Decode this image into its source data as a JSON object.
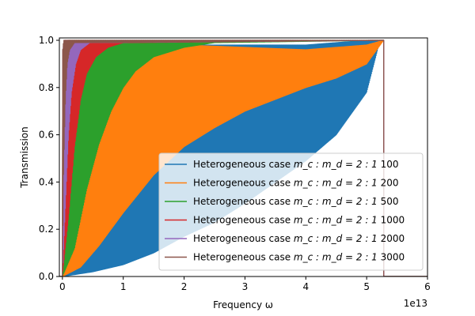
{
  "chart_data": {
    "type": "line",
    "title": "",
    "xlabel": "Frequency ω",
    "ylabel": "Transmission",
    "x_offset_label": "1e13",
    "xlim": [
      -0.05,
      6
    ],
    "ylim": [
      0,
      1.01
    ],
    "x_unit_scale": 10000000000000.0,
    "x_ticks": [
      0,
      1,
      2,
      3,
      4,
      5,
      6
    ],
    "x_tick_labels": [
      "0",
      "1",
      "2",
      "3",
      "4",
      "5",
      "6"
    ],
    "y_ticks": [
      0,
      0.2,
      0.4,
      0.6,
      0.8,
      1.0
    ],
    "y_tick_labels": [
      "0.0",
      "0.2",
      "0.4",
      "0.6",
      "0.8",
      "1.0"
    ],
    "grid": false,
    "legend_position": "lower-right",
    "band_edge": 5.28,
    "series": [
      {
        "name": "Heterogeneous case m_c : m_d = 2 : 1 100",
        "legend_label": "Heterogeneous case",
        "legend_math": "m_c : m_d = 2 : 1",
        "legend_suffix": "100",
        "color": "#1f77b4",
        "upper_envelope": [
          [
            0,
            0.95
          ],
          [
            0.05,
            1.0
          ],
          [
            0.5,
            0.98
          ],
          [
            1,
            0.97
          ],
          [
            2,
            0.98
          ],
          [
            3,
            0.98
          ],
          [
            4,
            0.98
          ],
          [
            5,
            1.0
          ],
          [
            5.28,
            1.0
          ]
        ],
        "lower_envelope": [
          [
            0,
            0.0
          ],
          [
            0.5,
            0.02
          ],
          [
            1,
            0.05
          ],
          [
            1.5,
            0.1
          ],
          [
            2,
            0.17
          ],
          [
            2.5,
            0.23
          ],
          [
            3,
            0.31
          ],
          [
            3.5,
            0.4
          ],
          [
            4,
            0.49
          ],
          [
            4.5,
            0.6
          ],
          [
            5,
            0.78
          ],
          [
            5.2,
            0.98
          ],
          [
            5.28,
            1.0
          ]
        ]
      },
      {
        "name": "Heterogeneous case m_c : m_d = 2 : 1 200",
        "legend_label": "Heterogeneous case",
        "legend_math": "m_c : m_d = 2 : 1",
        "legend_suffix": "200",
        "color": "#ff7f0e",
        "upper_envelope": [
          [
            0,
            0.95
          ],
          [
            0.1,
            1.0
          ],
          [
            1,
            0.99
          ],
          [
            2,
            0.98
          ],
          [
            3,
            0.97
          ],
          [
            4,
            0.96
          ],
          [
            5,
            0.98
          ],
          [
            5.28,
            1.0
          ]
        ],
        "lower_envelope": [
          [
            0,
            0.0
          ],
          [
            0.3,
            0.04
          ],
          [
            0.6,
            0.13
          ],
          [
            1,
            0.27
          ],
          [
            1.5,
            0.43
          ],
          [
            2,
            0.55
          ],
          [
            2.5,
            0.63
          ],
          [
            3,
            0.7
          ],
          [
            3.5,
            0.75
          ],
          [
            4,
            0.8
          ],
          [
            4.5,
            0.84
          ],
          [
            5,
            0.9
          ],
          [
            5.28,
            1.0
          ]
        ]
      },
      {
        "name": "Heterogeneous case m_c : m_d = 2 : 1 500",
        "legend_label": "Heterogeneous case",
        "legend_math": "m_c : m_d = 2 : 1",
        "legend_suffix": "500",
        "color": "#2ca02c",
        "upper_envelope": [
          [
            0,
            0.95
          ],
          [
            0.1,
            1.0
          ],
          [
            5.28,
            1.0
          ]
        ],
        "lower_envelope": [
          [
            0,
            0.0
          ],
          [
            0.2,
            0.12
          ],
          [
            0.4,
            0.37
          ],
          [
            0.6,
            0.56
          ],
          [
            0.8,
            0.7
          ],
          [
            1,
            0.8
          ],
          [
            1.2,
            0.87
          ],
          [
            1.5,
            0.93
          ],
          [
            2,
            0.97
          ],
          [
            2.5,
            0.99
          ],
          [
            5.28,
            1.0
          ]
        ]
      },
      {
        "name": "Heterogeneous case m_c : m_d = 2 : 1 1000",
        "legend_label": "Heterogeneous case",
        "legend_math": "m_c : m_d = 2 : 1",
        "legend_suffix": "1000",
        "color": "#d62728",
        "upper_envelope": [
          [
            0,
            0.95
          ],
          [
            0.05,
            1.0
          ],
          [
            5.28,
            1.0
          ]
        ],
        "lower_envelope": [
          [
            0,
            0.0
          ],
          [
            0.1,
            0.25
          ],
          [
            0.2,
            0.55
          ],
          [
            0.3,
            0.75
          ],
          [
            0.4,
            0.86
          ],
          [
            0.55,
            0.93
          ],
          [
            0.75,
            0.97
          ],
          [
            1,
            0.99
          ],
          [
            5.28,
            1.0
          ]
        ]
      },
      {
        "name": "Heterogeneous case m_c : m_d = 2 : 1 2000",
        "legend_label": "Heterogeneous case",
        "legend_math": "m_c : m_d = 2 : 1",
        "legend_suffix": "2000",
        "color": "#9467bd",
        "upper_envelope": [
          [
            0,
            0.95
          ],
          [
            0.03,
            1.0
          ],
          [
            5.28,
            1.0
          ]
        ],
        "lower_envelope": [
          [
            0,
            0.0
          ],
          [
            0.05,
            0.3
          ],
          [
            0.1,
            0.6
          ],
          [
            0.15,
            0.78
          ],
          [
            0.22,
            0.9
          ],
          [
            0.3,
            0.96
          ],
          [
            0.45,
            0.99
          ],
          [
            5.28,
            1.0
          ]
        ]
      },
      {
        "name": "Heterogeneous case m_c : m_d = 2 : 1 3000",
        "legend_label": "Heterogeneous case",
        "legend_math": "m_c : m_d = 2 : 1",
        "legend_suffix": "3000",
        "color": "#8c564b",
        "upper_envelope": [
          [
            0,
            0.95
          ],
          [
            0.02,
            1.0
          ],
          [
            5.28,
            1.0
          ]
        ],
        "lower_envelope": [
          [
            0,
            0.0
          ],
          [
            0.02,
            0.45
          ],
          [
            0.05,
            0.75
          ],
          [
            0.08,
            0.9
          ],
          [
            0.12,
            0.96
          ],
          [
            0.2,
            0.99
          ],
          [
            5.28,
            1.0
          ]
        ]
      }
    ]
  }
}
